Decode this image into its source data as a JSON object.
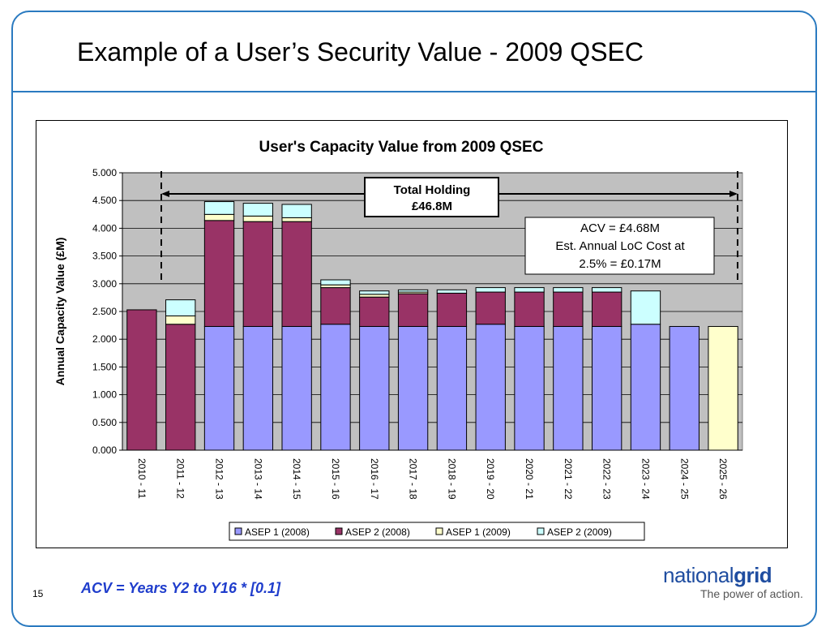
{
  "slide": {
    "title": "Example of a User’s Security Value - 2009 QSEC",
    "footnote": "ACV = Years Y2 to Y16 * [0.1]",
    "page_number": "15",
    "logo": {
      "word_light": "national",
      "word_bold": "grid",
      "tagline": "The power of action."
    }
  },
  "chart_data": {
    "type": "bar",
    "stacked": true,
    "title": "User's Capacity Value from 2009 QSEC",
    "xlabel": "",
    "ylabel": "Annual Capacity Value (£M)",
    "ylim": [
      0,
      5
    ],
    "yticks": [
      "0.000",
      "0.500",
      "1.000",
      "1.500",
      "2.000",
      "2.500",
      "3.000",
      "3.500",
      "4.000",
      "4.500",
      "5.000"
    ],
    "grid": true,
    "legend_position": "bottom",
    "categories": [
      "2010 - 11",
      "2011 - 12",
      "2012 - 13",
      "2013 - 14",
      "2014 - 15",
      "2015 - 16",
      "2016 - 17",
      "2017 - 18",
      "2018 - 19",
      "2019 - 20",
      "2020 - 21",
      "2021 - 22",
      "2022 - 23",
      "2023 - 24",
      "2024 - 25",
      "2025 - 26"
    ],
    "series": [
      {
        "name": "ASEP 1 (2008)",
        "color": "#9999ff",
        "values": [
          0,
          0,
          2.23,
          2.23,
          2.23,
          2.27,
          2.23,
          2.23,
          2.23,
          2.27,
          2.23,
          2.23,
          2.23,
          2.27,
          2.23,
          0
        ]
      },
      {
        "name": "ASEP 2 (2008)",
        "color": "#993366",
        "values": [
          2.53,
          2.27,
          1.91,
          1.89,
          1.89,
          0.66,
          0.53,
          0.59,
          0.6,
          0.58,
          0.62,
          0.62,
          0.62,
          0,
          0,
          0
        ]
      },
      {
        "name": "ASEP 1 (2009)",
        "color": "#ffffcc",
        "values": [
          0,
          0.15,
          0.11,
          0.1,
          0.07,
          0.05,
          0.05,
          0.03,
          0,
          0,
          0,
          0,
          0,
          0,
          0,
          2.23
        ]
      },
      {
        "name": "ASEP 2 (2009)",
        "color": "#ccffff",
        "values": [
          0,
          0.29,
          0.23,
          0.23,
          0.24,
          0.09,
          0.06,
          0.04,
          0.06,
          0.08,
          0.08,
          0.08,
          0.08,
          0.6,
          0,
          0
        ]
      }
    ],
    "plot_background": "#c0c0c0",
    "annotations": {
      "total_holding": [
        "Total Holding",
        "£46.8M"
      ],
      "acv_box": [
        "ACV = £4.68M",
        "Est. Annual LoC Cost at",
        "2.5% = £0.17M"
      ]
    }
  }
}
